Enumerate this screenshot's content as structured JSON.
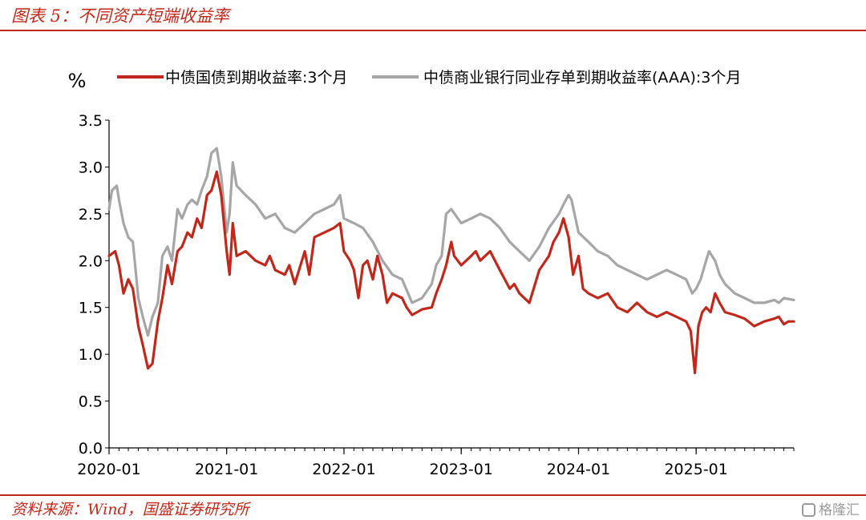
{
  "header": {
    "title": "图表 5：不同资产短端收益率"
  },
  "footer": {
    "source": "资料来源：Wind，国盛证券研究所",
    "watermark": "格隆汇"
  },
  "chart_data": {
    "type": "line",
    "ylabel": "%",
    "ylim": [
      0.0,
      3.5
    ],
    "yticks": [
      "0.0",
      "0.5",
      "1.0",
      "1.5",
      "2.0",
      "2.5",
      "3.0",
      "3.5"
    ],
    "xlim": [
      "2020-01",
      "2025-11"
    ],
    "xticks": [
      "2020-01",
      "2021-01",
      "2022-01",
      "2023-01",
      "2024-01",
      "2025-01"
    ],
    "legend_position": "top",
    "grid": false,
    "series": [
      {
        "name": "中债国债到期收益率:3个月",
        "color": "#c0281b",
        "points": [
          [
            "2020-01",
            2.05
          ],
          [
            "2020-01-20",
            2.1
          ],
          [
            "2020-02",
            1.95
          ],
          [
            "2020-02-15",
            1.65
          ],
          [
            "2020-03",
            1.8
          ],
          [
            "2020-03-15",
            1.7
          ],
          [
            "2020-04",
            1.3
          ],
          [
            "2020-04-15",
            1.1
          ],
          [
            "2020-05",
            0.85
          ],
          [
            "2020-05-15",
            0.9
          ],
          [
            "2020-06",
            1.35
          ],
          [
            "2020-06-15",
            1.6
          ],
          [
            "2020-07",
            1.95
          ],
          [
            "2020-07-15",
            1.75
          ],
          [
            "2020-08",
            2.1
          ],
          [
            "2020-08-15",
            2.15
          ],
          [
            "2020-09",
            2.3
          ],
          [
            "2020-09-15",
            2.25
          ],
          [
            "2020-10",
            2.45
          ],
          [
            "2020-10-15",
            2.35
          ],
          [
            "2020-11",
            2.7
          ],
          [
            "2020-11-15",
            2.75
          ],
          [
            "2020-12",
            2.95
          ],
          [
            "2020-12-15",
            2.7
          ],
          [
            "2021-01",
            2.1
          ],
          [
            "2021-01-10",
            1.85
          ],
          [
            "2021-01-20",
            2.4
          ],
          [
            "2021-02",
            2.05
          ],
          [
            "2021-03",
            2.1
          ],
          [
            "2021-04",
            2.0
          ],
          [
            "2021-05",
            1.95
          ],
          [
            "2021-05-15",
            2.05
          ],
          [
            "2021-06",
            1.9
          ],
          [
            "2021-07",
            1.85
          ],
          [
            "2021-07-15",
            1.95
          ],
          [
            "2021-08",
            1.75
          ],
          [
            "2021-09",
            2.1
          ],
          [
            "2021-09-15",
            1.85
          ],
          [
            "2021-10",
            2.25
          ],
          [
            "2021-11",
            2.3
          ],
          [
            "2021-12",
            2.35
          ],
          [
            "2021-12-20",
            2.4
          ],
          [
            "2022-01",
            2.1
          ],
          [
            "2022-01-20",
            2.0
          ],
          [
            "2022-02",
            1.9
          ],
          [
            "2022-02-15",
            1.6
          ],
          [
            "2022-03",
            1.95
          ],
          [
            "2022-03-15",
            2.0
          ],
          [
            "2022-04",
            1.8
          ],
          [
            "2022-04-15",
            2.05
          ],
          [
            "2022-05",
            1.85
          ],
          [
            "2022-05-15",
            1.55
          ],
          [
            "2022-06",
            1.65
          ],
          [
            "2022-07",
            1.6
          ],
          [
            "2022-07-15",
            1.5
          ],
          [
            "2022-08",
            1.42
          ],
          [
            "2022-09",
            1.48
          ],
          [
            "2022-10",
            1.5
          ],
          [
            "2022-10-15",
            1.65
          ],
          [
            "2022-11",
            1.8
          ],
          [
            "2022-11-15",
            1.95
          ],
          [
            "2022-12",
            2.2
          ],
          [
            "2022-12-10",
            2.05
          ],
          [
            "2023-01",
            1.95
          ],
          [
            "2023-02",
            2.05
          ],
          [
            "2023-02-15",
            2.1
          ],
          [
            "2023-03",
            2.0
          ],
          [
            "2023-04",
            2.1
          ],
          [
            "2023-05",
            1.9
          ],
          [
            "2023-06",
            1.7
          ],
          [
            "2023-06-15",
            1.75
          ],
          [
            "2023-07",
            1.65
          ],
          [
            "2023-08",
            1.55
          ],
          [
            "2023-09",
            1.9
          ],
          [
            "2023-10",
            2.05
          ],
          [
            "2023-10-15",
            2.2
          ],
          [
            "2023-11",
            2.3
          ],
          [
            "2023-11-15",
            2.45
          ],
          [
            "2023-12",
            2.25
          ],
          [
            "2023-12-15",
            1.85
          ],
          [
            "2024-01",
            2.05
          ],
          [
            "2024-01-15",
            1.7
          ],
          [
            "2024-02",
            1.65
          ],
          [
            "2024-03",
            1.6
          ],
          [
            "2024-04",
            1.65
          ],
          [
            "2024-05",
            1.5
          ],
          [
            "2024-06",
            1.45
          ],
          [
            "2024-07",
            1.55
          ],
          [
            "2024-08",
            1.45
          ],
          [
            "2024-09",
            1.4
          ],
          [
            "2024-10",
            1.45
          ],
          [
            "2024-11",
            1.4
          ],
          [
            "2024-12",
            1.35
          ],
          [
            "2024-12-15",
            1.25
          ],
          [
            "2024-12-28",
            0.8
          ],
          [
            "2025-01-08",
            1.3
          ],
          [
            "2025-01-20",
            1.45
          ],
          [
            "2025-02",
            1.5
          ],
          [
            "2025-02-15",
            1.45
          ],
          [
            "2025-03",
            1.65
          ],
          [
            "2025-03-15",
            1.55
          ],
          [
            "2025-04",
            1.45
          ],
          [
            "2025-05",
            1.42
          ],
          [
            "2025-06",
            1.38
          ],
          [
            "2025-07",
            1.3
          ],
          [
            "2025-08",
            1.35
          ],
          [
            "2025-09",
            1.38
          ],
          [
            "2025-09-15",
            1.4
          ],
          [
            "2025-10",
            1.32
          ],
          [
            "2025-10-15",
            1.35
          ],
          [
            "2025-11",
            1.35
          ]
        ]
      },
      {
        "name": "中债商业银行同业存单到期收益率(AAA):3个月",
        "color": "#a6a6a6",
        "points": [
          [
            "2020-01",
            2.55
          ],
          [
            "2020-01-10",
            2.75
          ],
          [
            "2020-01-25",
            2.8
          ],
          [
            "2020-02",
            2.65
          ],
          [
            "2020-02-15",
            2.4
          ],
          [
            "2020-03",
            2.25
          ],
          [
            "2020-03-15",
            2.2
          ],
          [
            "2020-04",
            1.6
          ],
          [
            "2020-04-15",
            1.4
          ],
          [
            "2020-05",
            1.2
          ],
          [
            "2020-05-15",
            1.4
          ],
          [
            "2020-06",
            1.55
          ],
          [
            "2020-06-15",
            2.05
          ],
          [
            "2020-07",
            2.15
          ],
          [
            "2020-07-15",
            2.0
          ],
          [
            "2020-08",
            2.55
          ],
          [
            "2020-08-15",
            2.45
          ],
          [
            "2020-09",
            2.6
          ],
          [
            "2020-09-15",
            2.65
          ],
          [
            "2020-10",
            2.6
          ],
          [
            "2020-10-15",
            2.75
          ],
          [
            "2020-11",
            2.9
          ],
          [
            "2020-11-15",
            3.15
          ],
          [
            "2020-12",
            3.2
          ],
          [
            "2020-12-15",
            2.9
          ],
          [
            "2021-01",
            2.3
          ],
          [
            "2021-01-10",
            2.5
          ],
          [
            "2021-01-20",
            3.05
          ],
          [
            "2021-02",
            2.8
          ],
          [
            "2021-03",
            2.7
          ],
          [
            "2021-04",
            2.6
          ],
          [
            "2021-05",
            2.45
          ],
          [
            "2021-06",
            2.5
          ],
          [
            "2021-07",
            2.35
          ],
          [
            "2021-08",
            2.3
          ],
          [
            "2021-09",
            2.4
          ],
          [
            "2021-10",
            2.5
          ],
          [
            "2021-11",
            2.55
          ],
          [
            "2021-12",
            2.6
          ],
          [
            "2021-12-20",
            2.7
          ],
          [
            "2022-01",
            2.45
          ],
          [
            "2022-02",
            2.4
          ],
          [
            "2022-03",
            2.35
          ],
          [
            "2022-04",
            2.2
          ],
          [
            "2022-05",
            2.0
          ],
          [
            "2022-06",
            1.85
          ],
          [
            "2022-07",
            1.8
          ],
          [
            "2022-08",
            1.55
          ],
          [
            "2022-09",
            1.6
          ],
          [
            "2022-10",
            1.75
          ],
          [
            "2022-10-15",
            1.95
          ],
          [
            "2022-11",
            2.05
          ],
          [
            "2022-11-15",
            2.5
          ],
          [
            "2022-12",
            2.55
          ],
          [
            "2023-01",
            2.4
          ],
          [
            "2023-02",
            2.45
          ],
          [
            "2023-03",
            2.5
          ],
          [
            "2023-04",
            2.45
          ],
          [
            "2023-05",
            2.35
          ],
          [
            "2023-06",
            2.2
          ],
          [
            "2023-07",
            2.1
          ],
          [
            "2023-08",
            2.0
          ],
          [
            "2023-09",
            2.15
          ],
          [
            "2023-10",
            2.35
          ],
          [
            "2023-11",
            2.5
          ],
          [
            "2023-11-15",
            2.6
          ],
          [
            "2023-12",
            2.7
          ],
          [
            "2023-12-10",
            2.65
          ],
          [
            "2024-01",
            2.3
          ],
          [
            "2024-02",
            2.2
          ],
          [
            "2024-03",
            2.1
          ],
          [
            "2024-04",
            2.05
          ],
          [
            "2024-05",
            1.95
          ],
          [
            "2024-06",
            1.9
          ],
          [
            "2024-07",
            1.85
          ],
          [
            "2024-08",
            1.8
          ],
          [
            "2024-09",
            1.85
          ],
          [
            "2024-10",
            1.9
          ],
          [
            "2024-11",
            1.85
          ],
          [
            "2024-12",
            1.8
          ],
          [
            "2024-12-20",
            1.65
          ],
          [
            "2025-01",
            1.7
          ],
          [
            "2025-01-15",
            1.8
          ],
          [
            "2025-02",
            2.0
          ],
          [
            "2025-02-10",
            2.1
          ],
          [
            "2025-03",
            2.0
          ],
          [
            "2025-03-15",
            1.85
          ],
          [
            "2025-04",
            1.75
          ],
          [
            "2025-05",
            1.65
          ],
          [
            "2025-06",
            1.6
          ],
          [
            "2025-07",
            1.55
          ],
          [
            "2025-08",
            1.55
          ],
          [
            "2025-09",
            1.58
          ],
          [
            "2025-09-15",
            1.55
          ],
          [
            "2025-10",
            1.6
          ],
          [
            "2025-11",
            1.58
          ]
        ]
      }
    ]
  }
}
